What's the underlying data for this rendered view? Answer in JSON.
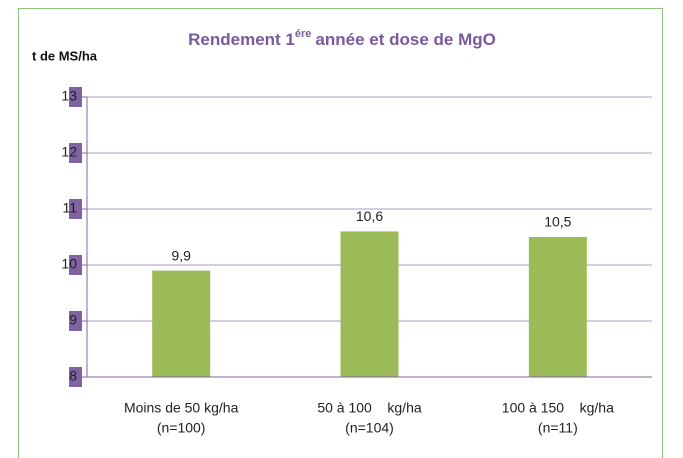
{
  "chart_data": {
    "type": "bar",
    "title": [
      "Rendement 1",
      "ére",
      "année et dose de MgO"
    ],
    "y_label": "t de MS/ha",
    "categories": [
      [
        "Moins de 50 kg/ha",
        "(n=100)"
      ],
      [
        "50 à 100    kg/ha",
        "(n=104)"
      ],
      [
        "100 à 150    kg/ha",
        "(n=11)"
      ]
    ],
    "values": [
      9.9,
      10.6,
      10.5
    ],
    "value_labels": [
      "9,9",
      "10,6",
      "10,5"
    ],
    "color": "#9bbb59",
    "ylim": [
      8,
      13
    ],
    "yticks": [
      8,
      9,
      10,
      11,
      12,
      13
    ],
    "grid": true
  }
}
